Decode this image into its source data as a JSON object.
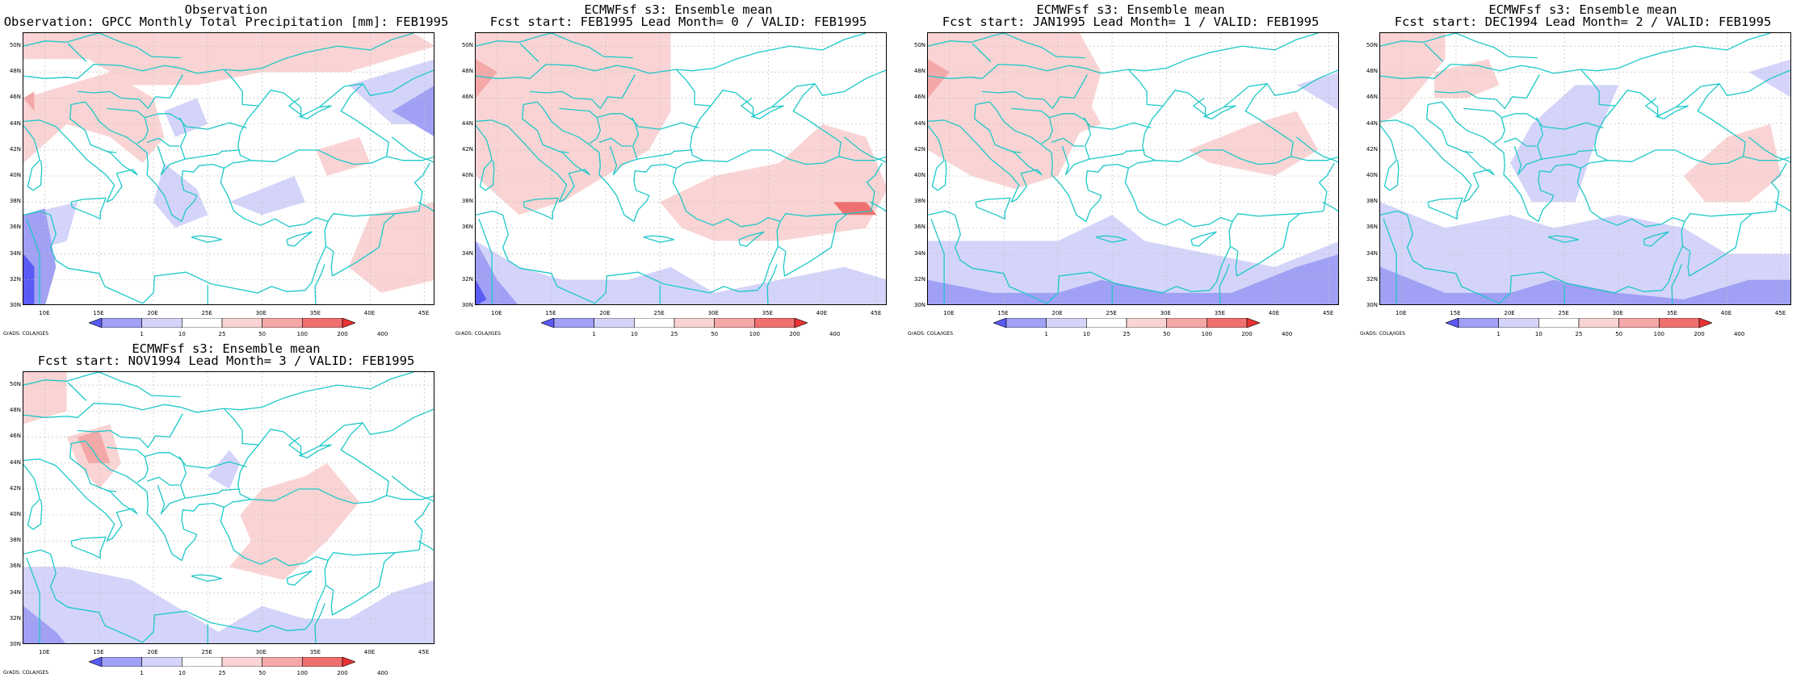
{
  "colors": {
    "coast": "#1ec8c8",
    "grid": "#bfbfbf",
    "frame": "#000000",
    "levels": [
      "#5a5af5",
      "#a0a0f5",
      "#d4d4fa",
      "#ffffff",
      "#fad4d4",
      "#f5a8a8",
      "#f07070",
      "#e83232"
    ]
  },
  "axes": {
    "lat_ticks": [
      "30N",
      "32N",
      "34N",
      "36N",
      "38N",
      "40N",
      "42N",
      "44N",
      "46N",
      "48N",
      "50N"
    ],
    "lon_ticks": [
      "10E",
      "15E",
      "20E",
      "25E",
      "30E",
      "35E",
      "40E",
      "45E"
    ],
    "lat_range": [
      30,
      51
    ],
    "lon_range": [
      8,
      46
    ]
  },
  "colorbar": {
    "labels": [
      "1",
      "10",
      "25",
      "50",
      "100",
      "200",
      "400"
    ]
  },
  "credit": "GrADS: COLA/IGES",
  "panels": [
    {
      "title1": "Observation",
      "title2": "Observation: GPCC Monthly Total Precipitation [mm]: FEB1995",
      "shading": [
        {
          "level": 4,
          "poly": [
            [
              8,
              51
            ],
            [
              44,
              51
            ],
            [
              46,
              50
            ],
            [
              38,
              48
            ],
            [
              30,
              48
            ],
            [
              24,
              47
            ],
            [
              18,
              47
            ],
            [
              14,
              49
            ],
            [
              8,
              49
            ]
          ]
        },
        {
          "level": 4,
          "poly": [
            [
              8,
              46
            ],
            [
              12,
              47
            ],
            [
              16,
              48
            ],
            [
              20,
              46
            ],
            [
              21,
              43
            ],
            [
              19,
              41
            ],
            [
              16,
              43
            ],
            [
              12,
              44
            ],
            [
              8,
              41
            ]
          ]
        },
        {
          "level": 5,
          "poly": [
            [
              8,
              46
            ],
            [
              9,
              46.5
            ],
            [
              9,
              45
            ]
          ]
        },
        {
          "level": 2,
          "poly": [
            [
              21,
              45
            ],
            [
              24,
              46
            ],
            [
              25,
              44
            ],
            [
              22,
              43
            ]
          ]
        },
        {
          "level": 2,
          "poly": [
            [
              38,
              47
            ],
            [
              46,
              49
            ],
            [
              46,
              44
            ],
            [
              42,
              44
            ]
          ]
        },
        {
          "level": 1,
          "poly": [
            [
              42,
              45
            ],
            [
              46,
              47
            ],
            [
              46,
              43
            ]
          ]
        },
        {
          "level": 2,
          "poly": [
            [
              21,
              41
            ],
            [
              24,
              39
            ],
            [
              25,
              37
            ],
            [
              22,
              36
            ],
            [
              20,
              38
            ]
          ]
        },
        {
          "level": 2,
          "poly": [
            [
              27,
              38
            ],
            [
              30,
              39
            ],
            [
              33,
              40
            ],
            [
              34,
              38
            ],
            [
              30,
              37
            ]
          ]
        },
        {
          "level": 4,
          "poly": [
            [
              35,
              42
            ],
            [
              39,
              43
            ],
            [
              40,
              41
            ],
            [
              36,
              40
            ]
          ]
        },
        {
          "level": 4,
          "poly": [
            [
              40,
              37
            ],
            [
              46,
              38
            ],
            [
              46,
              32
            ],
            [
              41,
              31
            ],
            [
              38,
              33
            ]
          ]
        },
        {
          "level": 2,
          "poly": [
            [
              8,
              37
            ],
            [
              13,
              38
            ],
            [
              12,
              35
            ],
            [
              8,
              34
            ]
          ]
        },
        {
          "level": 1,
          "poly": [
            [
              8,
              37
            ],
            [
              10,
              37.5
            ],
            [
              11,
              33
            ],
            [
              10,
              30
            ],
            [
              8,
              30
            ]
          ]
        },
        {
          "level": 0,
          "poly": [
            [
              8,
              34
            ],
            [
              9,
              33
            ],
            [
              9,
              30
            ],
            [
              8,
              30
            ]
          ]
        }
      ]
    },
    {
      "title1": "ECMWFsf s3: Ensemble mean",
      "title2": "Fcst start: FEB1995  Lead Month= 0 / VALID: FEB1995",
      "shading": [
        {
          "level": 4,
          "poly": [
            [
              8,
              51
            ],
            [
              26,
              51
            ],
            [
              26,
              45
            ],
            [
              24,
              42
            ],
            [
              20,
              40
            ],
            [
              16,
              38
            ],
            [
              12,
              37
            ],
            [
              8,
              40
            ]
          ]
        },
        {
          "level": 5,
          "poly": [
            [
              8,
              49
            ],
            [
              10,
              48
            ],
            [
              8,
              46
            ]
          ]
        },
        {
          "level": 4,
          "poly": [
            [
              25,
              38
            ],
            [
              30,
              40
            ],
            [
              36,
              41
            ],
            [
              40,
              44
            ],
            [
              44,
              43
            ],
            [
              46,
              39
            ],
            [
              44,
              36
            ],
            [
              36,
              35
            ],
            [
              30,
              35
            ],
            [
              27,
              36
            ]
          ]
        },
        {
          "level": 6,
          "poly": [
            [
              41,
              38
            ],
            [
              44,
              38
            ],
            [
              45,
              37
            ],
            [
              42,
              37
            ]
          ]
        },
        {
          "level": 2,
          "poly": [
            [
              8,
              35
            ],
            [
              12,
              33
            ],
            [
              16,
              32
            ],
            [
              22,
              32
            ],
            [
              26,
              33
            ],
            [
              30,
              31
            ],
            [
              36,
              32
            ],
            [
              42,
              33
            ],
            [
              46,
              32
            ],
            [
              46,
              30
            ],
            [
              8,
              30
            ]
          ]
        },
        {
          "level": 1,
          "poly": [
            [
              8,
              35
            ],
            [
              10,
              32
            ],
            [
              12,
              30
            ],
            [
              8,
              30
            ]
          ]
        },
        {
          "level": 0,
          "poly": [
            [
              8,
              32
            ],
            [
              9,
              30.5
            ],
            [
              8,
              30
            ]
          ]
        }
      ]
    },
    {
      "title1": "ECMWFsf s3: Ensemble mean",
      "title2": "Fcst start: JAN1995  Lead Month= 1 / VALID: FEB1995",
      "shading": [
        {
          "level": 4,
          "poly": [
            [
              8,
              51
            ],
            [
              22,
              51
            ],
            [
              24,
              48
            ],
            [
              23,
              45
            ],
            [
              20,
              40
            ],
            [
              16,
              39
            ],
            [
              12,
              40
            ],
            [
              8,
              42
            ]
          ]
        },
        {
          "level": 5,
          "poly": [
            [
              8,
              49
            ],
            [
              10,
              48
            ],
            [
              8,
              46
            ]
          ]
        },
        {
          "level": 4,
          "poly": [
            [
              18,
              48
            ],
            [
              22,
              47
            ],
            [
              24,
              44
            ],
            [
              21,
              43
            ]
          ]
        },
        {
          "level": 4,
          "poly": [
            [
              32,
              42
            ],
            [
              38,
              44
            ],
            [
              42,
              45
            ],
            [
              44,
              42
            ],
            [
              40,
              40
            ],
            [
              34,
              41
            ]
          ]
        },
        {
          "level": 2,
          "poly": [
            [
              8,
              35
            ],
            [
              14,
              35
            ],
            [
              20,
              35
            ],
            [
              25,
              37
            ],
            [
              28,
              35
            ],
            [
              34,
              34
            ],
            [
              40,
              33
            ],
            [
              46,
              35
            ],
            [
              46,
              30
            ],
            [
              8,
              30
            ]
          ]
        },
        {
          "level": 1,
          "poly": [
            [
              8,
              32
            ],
            [
              14,
              31
            ],
            [
              20,
              31
            ],
            [
              24,
              32
            ],
            [
              30,
              31
            ],
            [
              36,
              31
            ],
            [
              42,
              33
            ],
            [
              46,
              34
            ],
            [
              46,
              30
            ],
            [
              8,
              30
            ]
          ]
        },
        {
          "level": 2,
          "poly": [
            [
              42,
              47
            ],
            [
              46,
              48
            ],
            [
              46,
              45
            ]
          ]
        }
      ]
    },
    {
      "title1": "ECMWFsf s3: Ensemble mean",
      "title2": "Fcst start: DEC1994  Lead Month= 2 / VALID: FEB1995",
      "shading": [
        {
          "level": 4,
          "poly": [
            [
              8,
              51
            ],
            [
              14,
              51
            ],
            [
              14,
              49
            ],
            [
              10,
              45
            ],
            [
              8,
              44
            ]
          ]
        },
        {
          "level": 4,
          "poly": [
            [
              13,
              48
            ],
            [
              18,
              49
            ],
            [
              19,
              47
            ],
            [
              16,
              46
            ],
            [
              13,
              46
            ]
          ]
        },
        {
          "level": 2,
          "poly": [
            [
              22,
              44
            ],
            [
              26,
              47
            ],
            [
              30,
              47
            ],
            [
              28,
              43
            ],
            [
              26,
              38
            ],
            [
              22,
              38
            ],
            [
              20,
              41
            ]
          ]
        },
        {
          "level": 4,
          "poly": [
            [
              36,
              40
            ],
            [
              40,
              43
            ],
            [
              44,
              44
            ],
            [
              45,
              40
            ],
            [
              42,
              38
            ],
            [
              38,
              38
            ]
          ]
        },
        {
          "level": 2,
          "poly": [
            [
              8,
              38
            ],
            [
              14,
              36
            ],
            [
              20,
              37
            ],
            [
              24,
              36
            ],
            [
              30,
              37
            ],
            [
              36,
              36
            ],
            [
              40,
              34
            ],
            [
              46,
              34
            ],
            [
              46,
              30
            ],
            [
              8,
              30
            ]
          ]
        },
        {
          "level": 1,
          "poly": [
            [
              8,
              33
            ],
            [
              14,
              31
            ],
            [
              20,
              31
            ],
            [
              24,
              32
            ],
            [
              30,
              31
            ],
            [
              36,
              30.5
            ],
            [
              42,
              32
            ],
            [
              46,
              32
            ],
            [
              46,
              30
            ],
            [
              8,
              30
            ]
          ]
        },
        {
          "level": 2,
          "poly": [
            [
              42,
              48
            ],
            [
              46,
              49
            ],
            [
              46,
              46
            ]
          ]
        }
      ]
    },
    {
      "title1": "ECMWFsf s3: Ensemble mean",
      "title2": "Fcst start: NOV1994  Lead Month= 3 / VALID: FEB1995",
      "shading": [
        {
          "level": 4,
          "poly": [
            [
              8,
              51
            ],
            [
              12,
              51
            ],
            [
              12,
              48
            ],
            [
              8,
              47
            ]
          ]
        },
        {
          "level": 4,
          "poly": [
            [
              12,
              46
            ],
            [
              16,
              47
            ],
            [
              17,
              44
            ],
            [
              15,
              42
            ],
            [
              13,
              44
            ]
          ]
        },
        {
          "level": 5,
          "poly": [
            [
              13,
              46
            ],
            [
              15,
              46.5
            ],
            [
              16,
              44
            ],
            [
              14,
              44
            ]
          ]
        },
        {
          "level": 2,
          "poly": [
            [
              25,
              43
            ],
            [
              27,
              45
            ],
            [
              28,
              44
            ],
            [
              27,
              42
            ]
          ]
        },
        {
          "level": 4,
          "poly": [
            [
              27,
              36
            ],
            [
              29,
              38
            ],
            [
              28,
              40
            ],
            [
              30,
              42
            ],
            [
              34,
              43
            ],
            [
              36,
              44
            ],
            [
              39,
              41
            ],
            [
              36,
              38
            ],
            [
              32,
              35
            ]
          ]
        },
        {
          "level": 2,
          "poly": [
            [
              8,
              36
            ],
            [
              12,
              36
            ],
            [
              18,
              35
            ],
            [
              22,
              33
            ],
            [
              26,
              31
            ],
            [
              30,
              33
            ],
            [
              34,
              32
            ],
            [
              38,
              32
            ],
            [
              42,
              34
            ],
            [
              46,
              35
            ],
            [
              46,
              30
            ],
            [
              8,
              30
            ]
          ]
        },
        {
          "level": 1,
          "poly": [
            [
              8,
              33
            ],
            [
              11,
              31
            ],
            [
              12,
              30
            ],
            [
              8,
              30
            ]
          ]
        }
      ]
    }
  ]
}
